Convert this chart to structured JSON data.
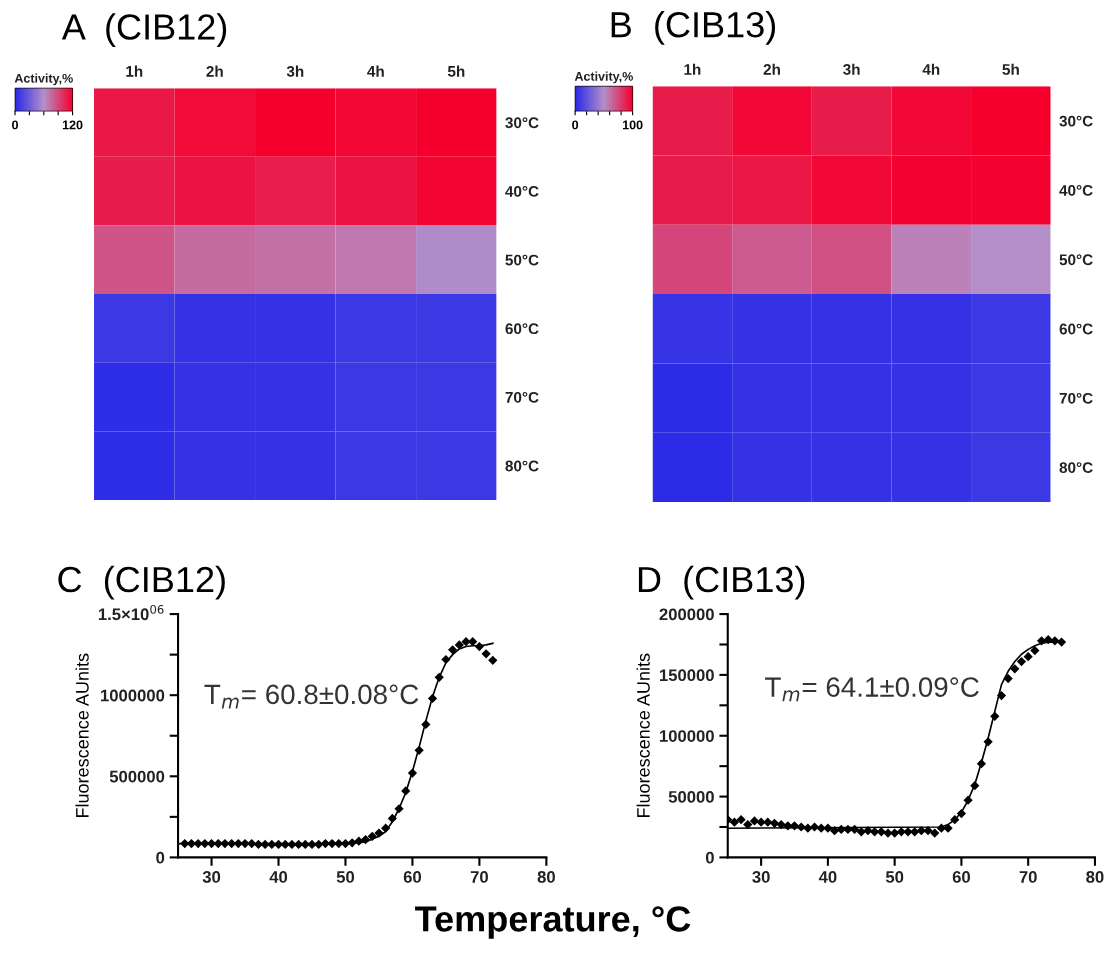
{
  "chart_data": [
    {
      "type": "heatmap",
      "title": "A  (CIB12)",
      "clabel": "Activity,%",
      "categories": [
        "1h",
        "2h",
        "3h",
        "4h",
        "5h"
      ],
      "y_categories": [
        "30°C",
        "40°C",
        "50°C",
        "60°C",
        "70°C",
        "80°C"
      ],
      "clim": [
        0,
        120
      ],
      "cticks": [
        0,
        {
          "value": 30,
          "label": null
        },
        {
          "value": 60,
          "label": null
        },
        {
          "value": 90,
          "label": null
        },
        120
      ],
      "cells": [
        [
          110,
          115,
          120,
          117,
          120
        ],
        [
          108,
          112,
          107,
          112,
          118
        ],
        [
          85,
          75,
          73,
          70,
          58
        ],
        [
          8,
          5,
          5,
          8,
          8
        ],
        [
          2,
          5,
          5,
          8,
          8
        ],
        [
          2,
          5,
          5,
          8,
          8
        ]
      ]
    },
    {
      "type": "heatmap",
      "title": "B  (CIB13)",
      "clabel": "Activity,%",
      "categories": [
        "1h",
        "2h",
        "3h",
        "4h",
        "5h"
      ],
      "y_categories": [
        "30°C",
        "40°C",
        "50°C",
        "60°C",
        "70°C",
        "80°C"
      ],
      "clim": [
        0,
        100
      ],
      "cticks": [
        0,
        {
          "value": 20,
          "label": null
        },
        {
          "value": 40,
          "label": null
        },
        {
          "value": 60,
          "label": null
        },
        {
          "value": 80,
          "label": null
        },
        100
      ],
      "cells": [
        [
          90,
          97,
          90,
          97,
          100
        ],
        [
          90,
          92,
          97,
          99,
          99
        ],
        [
          75,
          68,
          72,
          55,
          50
        ],
        [
          5,
          4,
          4,
          4,
          7
        ],
        [
          1,
          4,
          4,
          4,
          7
        ],
        [
          1,
          4,
          4,
          4,
          7
        ]
      ]
    },
    {
      "type": "scatter",
      "title": "C  (CIB12)",
      "xlabel": "Temperature, °C",
      "ylabel": "Fluorescence AUnits",
      "annotations": [
        "T$_{m}$= 60.8±0.08°C"
      ],
      "xlim": [
        25,
        80
      ],
      "xticks": [
        30,
        40,
        50,
        60,
        70,
        80
      ],
      "ylim": [
        0,
        1500000
      ],
      "yticks": [
        0,
        {
          "value": 250000,
          "label": null
        },
        500000,
        {
          "value": 750000,
          "label": null
        },
        1000000,
        {
          "value": 1250000,
          "label": null
        },
        {
          "value": 1500000,
          "label": "1.5×10$^{06}$"
        }
      ],
      "series": [
        {
          "type": "scatter",
          "marker": "diamond",
          "color": "#000000",
          "x": [
            26,
            27,
            28,
            29,
            30,
            31,
            32,
            33,
            34,
            35,
            36,
            37,
            38,
            39,
            40,
            41,
            42,
            43,
            44,
            45,
            46,
            47,
            48,
            49,
            50,
            51,
            52,
            53,
            54,
            55,
            56,
            57,
            58,
            59,
            60,
            61,
            62,
            63,
            64,
            65,
            66,
            67,
            68,
            69,
            70,
            71,
            72
          ],
          "values": [
            85000,
            85000,
            85000,
            85000,
            85000,
            85000,
            85000,
            85000,
            85000,
            85000,
            85000,
            80000,
            80000,
            80000,
            80000,
            80000,
            80000,
            80000,
            80000,
            80000,
            80000,
            85000,
            85000,
            85000,
            85000,
            90000,
            100000,
            110000,
            130000,
            150000,
            180000,
            240000,
            300000,
            410000,
            520000,
            660000,
            820000,
            980000,
            1110000,
            1220000,
            1280000,
            1310000,
            1330000,
            1330000,
            1300000,
            1255000,
            1215000
          ]
        },
        {
          "type": "line",
          "marker": "none",
          "color": "#000000",
          "x": [
            25,
            50,
            53,
            55,
            56,
            57,
            58,
            59,
            60,
            61,
            62,
            63,
            64,
            65,
            66,
            67,
            68,
            69,
            70,
            71,
            72
          ],
          "values": [
            85000,
            85000,
            95000,
            130000,
            160000,
            220000,
            300000,
            400000,
            530000,
            680000,
            840000,
            990000,
            1110000,
            1200000,
            1250000,
            1285000,
            1300000,
            1305000,
            1305000,
            1310000,
            1320000
          ]
        }
      ]
    },
    {
      "type": "scatter",
      "title": "D  (CIB13)",
      "ylabel": "Fluorescence AUnits",
      "annotations": [
        "T$_{m}$= 64.1±0.09°C"
      ],
      "xlim": [
        25,
        80
      ],
      "xticks": [
        30,
        40,
        50,
        60,
        70,
        80
      ],
      "ylim": [
        0,
        200000
      ],
      "yticks": [
        0,
        {
          "value": 25000,
          "label": null
        },
        50000,
        {
          "value": 75000,
          "label": null
        },
        100000,
        {
          "value": 125000,
          "label": null
        },
        150000,
        {
          "value": 175000,
          "label": null
        },
        200000
      ],
      "series": [
        {
          "type": "scatter",
          "marker": "diamond",
          "color": "#000000",
          "x": [
            25,
            26,
            27,
            28,
            29,
            30,
            31,
            32,
            33,
            34,
            35,
            36,
            37,
            38,
            39,
            40,
            41,
            42,
            43,
            44,
            45,
            46,
            47,
            48,
            49,
            50,
            51,
            52,
            53,
            54,
            55,
            56,
            57,
            58,
            59,
            60,
            61,
            62,
            63,
            64,
            65,
            66,
            67,
            68,
            69,
            70,
            71,
            72,
            73,
            74,
            75
          ],
          "values": [
            31000,
            29000,
            31000,
            27000,
            30000,
            29000,
            29000,
            28000,
            27000,
            26000,
            26000,
            25000,
            24000,
            25000,
            24000,
            24000,
            22000,
            23000,
            23000,
            23000,
            21000,
            22000,
            21000,
            21000,
            20000,
            20000,
            21000,
            21000,
            21000,
            22000,
            22000,
            20000,
            24000,
            24000,
            31000,
            36000,
            47000,
            59000,
            77000,
            95000,
            116000,
            133000,
            147000,
            155000,
            161000,
            165000,
            170000,
            178000,
            179000,
            178000,
            177000
          ]
        },
        {
          "type": "line",
          "marker": "none",
          "color": "#000000",
          "x": [
            25,
            57,
            58,
            59,
            60,
            61,
            62,
            63,
            64,
            65,
            66,
            67,
            68,
            69,
            70,
            71,
            72,
            73,
            74,
            75
          ],
          "values": [
            24000,
            25000,
            27000,
            31000,
            37000,
            47000,
            60000,
            78000,
            98000,
            120000,
            142000,
            153000,
            161000,
            167000,
            171000,
            174000,
            176000,
            177000,
            177000,
            177000
          ]
        }
      ]
    }
  ]
}
